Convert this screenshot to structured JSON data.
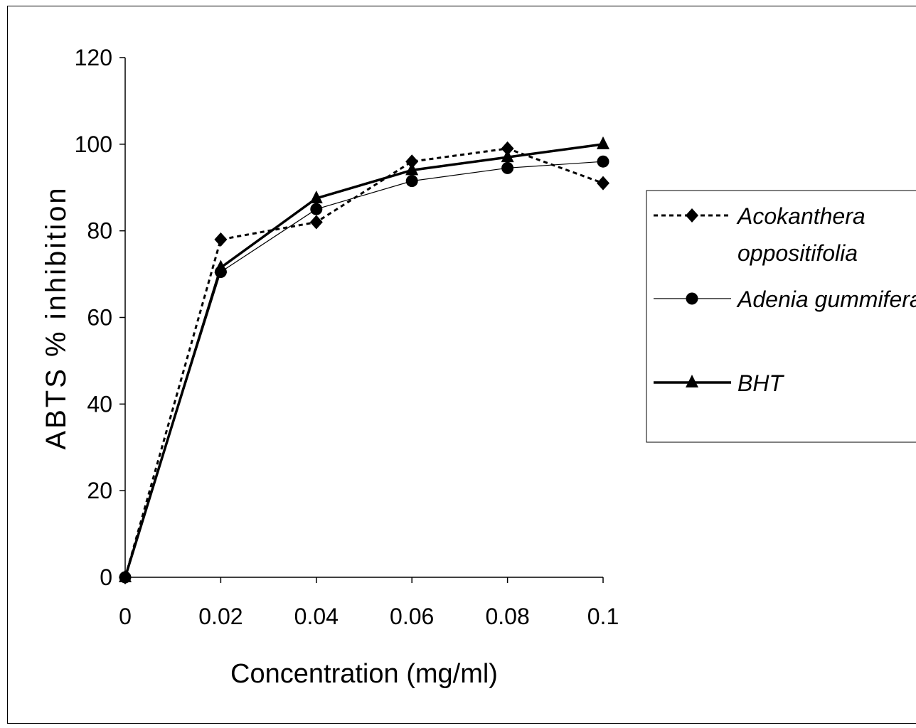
{
  "chart_data": {
    "type": "line",
    "xlabel": "Concentration (mg/ml)",
    "ylabel": "ABTS % inhibition",
    "x": [
      0,
      0.02,
      0.04,
      0.06,
      0.08,
      0.1
    ],
    "x_tick_labels": [
      "0",
      "0.02",
      "0.04",
      "0.06",
      "0.08",
      "0.1"
    ],
    "y_tick_labels": [
      "0",
      "20",
      "40",
      "60",
      "80",
      "100",
      "120"
    ],
    "xlim": [
      0,
      0.1
    ],
    "ylim": [
      0,
      120
    ],
    "grid": false,
    "legend_position": "right",
    "series": [
      {
        "name_lines": [
          "Acokanthera",
          "oppositifolia"
        ],
        "marker": "diamond",
        "line": "dotted",
        "values": [
          0,
          78,
          82,
          96,
          99,
          91
        ]
      },
      {
        "name_lines": [
          "Adenia gummifera"
        ],
        "marker": "circle",
        "line": "thin",
        "values": [
          0,
          70.5,
          85,
          91.5,
          94.5,
          96
        ]
      },
      {
        "name_lines": [
          "BHT"
        ],
        "marker": "triangle",
        "line": "thick",
        "values": [
          0,
          71.5,
          87.5,
          94,
          97,
          100
        ]
      }
    ]
  }
}
